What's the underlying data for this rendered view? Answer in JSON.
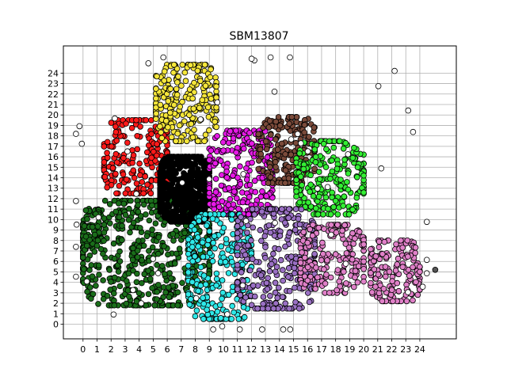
{
  "chart_data": {
    "type": "scatter",
    "title": "SBM13807",
    "xlabel": "",
    "ylabel": "",
    "xlim": [
      -1.4,
      26.6
    ],
    "ylim": [
      -1.4,
      26.6
    ],
    "x_ticks": [
      0,
      1,
      2,
      3,
      4,
      5,
      6,
      7,
      8,
      9,
      10,
      11,
      12,
      13,
      14,
      15,
      16,
      17,
      18,
      19,
      20,
      21,
      22,
      23,
      24
    ],
    "y_ticks": [
      0,
      1,
      2,
      3,
      4,
      5,
      6,
      7,
      8,
      9,
      10,
      11,
      12,
      13,
      14,
      15,
      16,
      17,
      18,
      19,
      20,
      21,
      22,
      23,
      24
    ],
    "grid": true,
    "legend": "none",
    "clusters": [
      {
        "color": "#1a6e1a",
        "region": {
          "x": [
            0,
            9
          ],
          "y": [
            1.8,
            11.8
          ]
        },
        "count": 520
      },
      {
        "color": "#1a6e1a",
        "region": {
          "x": [
            0,
            1.5
          ],
          "y": [
            7.5,
            11
          ]
        },
        "count": 40
      },
      {
        "color": "#ff1a1a",
        "region": {
          "x": [
            1.5,
            6
          ],
          "y": [
            12.5,
            19.5
          ]
        },
        "count": 200
      },
      {
        "color": "#f5e63a",
        "region": {
          "x": [
            5.2,
            9.5
          ],
          "y": [
            17.5,
            24.8
          ]
        },
        "count": 240
      },
      {
        "color": "#000000",
        "region": {
          "x": [
            5.5,
            9
          ],
          "y": [
            9.8,
            16
          ]
        },
        "count": 500
      },
      {
        "color": "#e61ae6",
        "region": {
          "x": [
            9,
            13.5
          ],
          "y": [
            10.5,
            18.5
          ]
        },
        "count": 260
      },
      {
        "color": "#7a4a3a",
        "region": {
          "x": [
            12.5,
            16.5
          ],
          "y": [
            13.5,
            19.8
          ]
        },
        "count": 200
      },
      {
        "color": "#33ee33",
        "region": {
          "x": [
            15.2,
            20
          ],
          "y": [
            10.5,
            17.5
          ]
        },
        "count": 240
      },
      {
        "color": "#2ee8e8",
        "region": {
          "x": [
            7.5,
            12
          ],
          "y": [
            0.5,
            10.5
          ]
        },
        "count": 260
      },
      {
        "color": "#9a70c4",
        "region": {
          "x": [
            11,
            16.5
          ],
          "y": [
            1.5,
            11
          ]
        },
        "count": 300
      },
      {
        "color": "#e080c8",
        "region": {
          "x": [
            15.5,
            20
          ],
          "y": [
            3,
            9.5
          ]
        },
        "count": 200
      },
      {
        "color": "#e080c8",
        "region": {
          "x": [
            20.5,
            24
          ],
          "y": [
            2.2,
            8
          ]
        },
        "count": 160
      },
      {
        "color": "#ffffff",
        "region": {
          "x": [
            -0.5,
            24.5
          ],
          "y": [
            -0.5,
            25.5
          ]
        },
        "count": 60
      },
      {
        "color": "#555555",
        "region": {
          "x": [
            25.1,
            25.1
          ],
          "y": [
            5.2,
            5.2
          ]
        },
        "count": 1
      }
    ]
  }
}
